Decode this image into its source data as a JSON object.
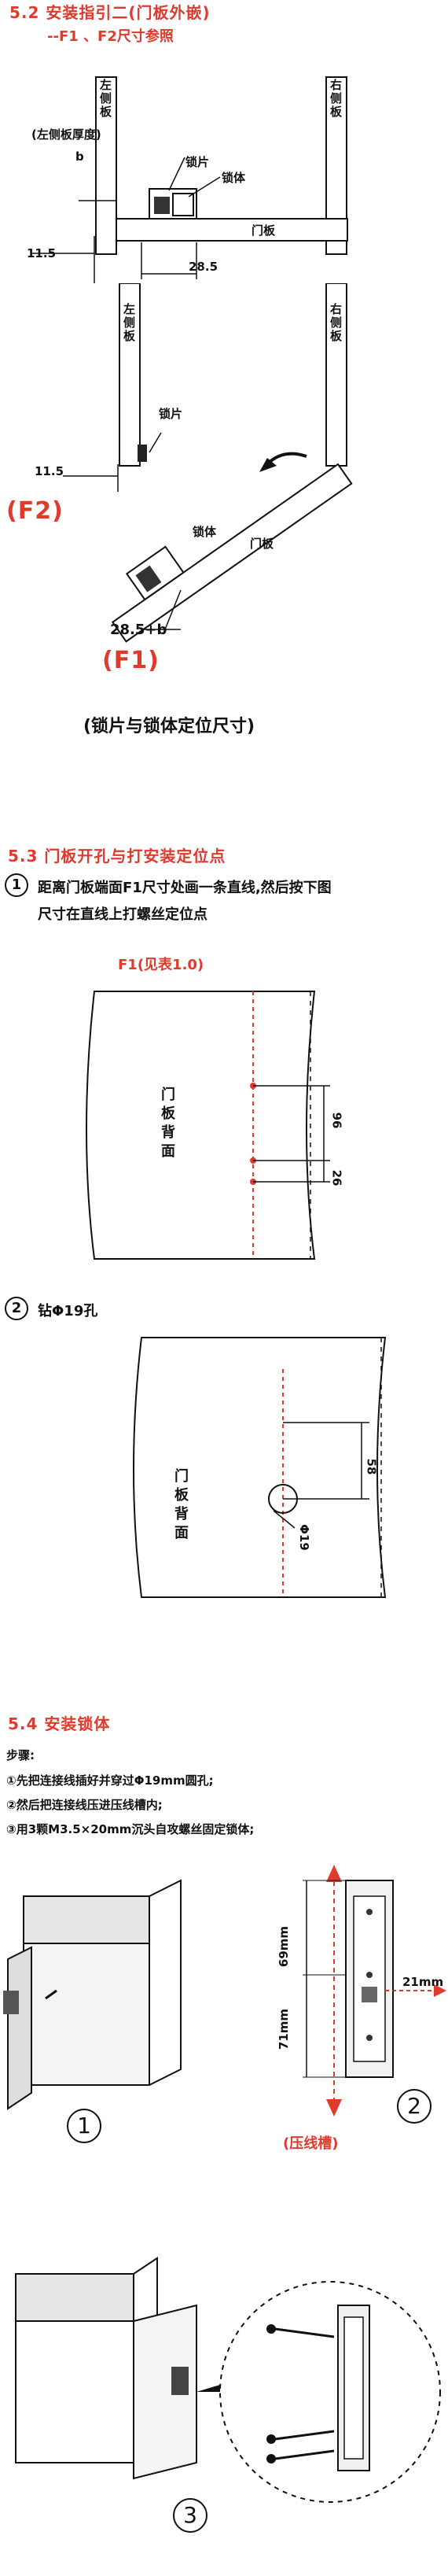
{
  "sec52": {
    "title": "5.2 安装指引二(门板外嵌)",
    "subtitle": "--F1 、F2尺寸参照",
    "label_left_thickness": "(左侧板厚度)",
    "label_b": "b",
    "label_lock_piece": "锁片",
    "label_lock_body": "锁体",
    "label_door": "门板",
    "label_left_panel": "左侧板",
    "label_right_panel": "右侧板",
    "dim_11_5": "11.5",
    "dim_28_5": "28.5",
    "dim_28_5b": "28.5+b",
    "f1": "(F1)",
    "f2": "(F2)",
    "caption": "(锁片与锁体定位尺寸)"
  },
  "sec53": {
    "title": "5.3 门板开孔与打安装定位点",
    "step1_num": "1",
    "step1_line1": "距离门板端面F1尺寸处画一条直线,然后按下图",
    "step1_line2": "尺寸在直线上打螺丝定位点",
    "f1_note": "F1(见表1.0)",
    "door_back_1": "门板背面",
    "dim_96": "96",
    "dim_26": "26",
    "step2_num": "2",
    "step2_text": "钻Φ19孔",
    "dim_58": "58",
    "dim_phi19": "Φ19",
    "door_back_2": "门板背面"
  },
  "sec54": {
    "title": "5.4 安装锁体",
    "steps_label": "步骤:",
    "step1": "①先把连接线插好并穿过Φ19mm圆孔;",
    "step2": "②然后把连接线压进压线槽内;",
    "step3": "③用3颗M3.5×20mm沉头自攻螺丝固定锁体;",
    "num1": "1",
    "num2": "2",
    "num3": "3",
    "dim_69": "69mm",
    "dim_71": "71mm",
    "dim_21": "21mm",
    "groove": "(压线槽)"
  }
}
